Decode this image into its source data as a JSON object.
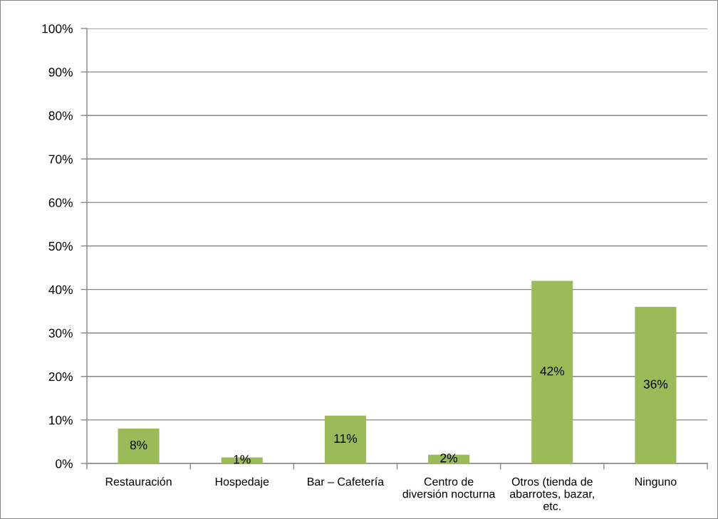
{
  "chart_data": {
    "type": "bar",
    "categories": [
      "Restauración",
      "Hospedaje",
      "Bar – Cafetería",
      "Centro de diversión nocturna",
      "Otros (tienda de abarrotes, bazar, etc.",
      "Ninguno"
    ],
    "values": [
      8,
      1.4,
      11,
      2,
      42,
      36
    ],
    "value_labels": [
      "8%",
      "1%",
      "11%",
      "2%",
      "42%",
      "36%"
    ],
    "color": "#9bbb59",
    "ylim": [
      0,
      100
    ],
    "yticks": [
      {
        "value": 0,
        "label": "0%"
      },
      {
        "value": 10,
        "label": "10%"
      },
      {
        "value": 20,
        "label": "20%"
      },
      {
        "value": 30,
        "label": "30%"
      },
      {
        "value": 40,
        "label": "40%"
      },
      {
        "value": 50,
        "label": "50%"
      },
      {
        "value": 60,
        "label": "60%"
      },
      {
        "value": 70,
        "label": "70%"
      },
      {
        "value": 80,
        "label": "80%"
      },
      {
        "value": 90,
        "label": "90%"
      },
      {
        "value": 100,
        "label": "100%"
      }
    ],
    "grid": "y",
    "legend": false
  }
}
